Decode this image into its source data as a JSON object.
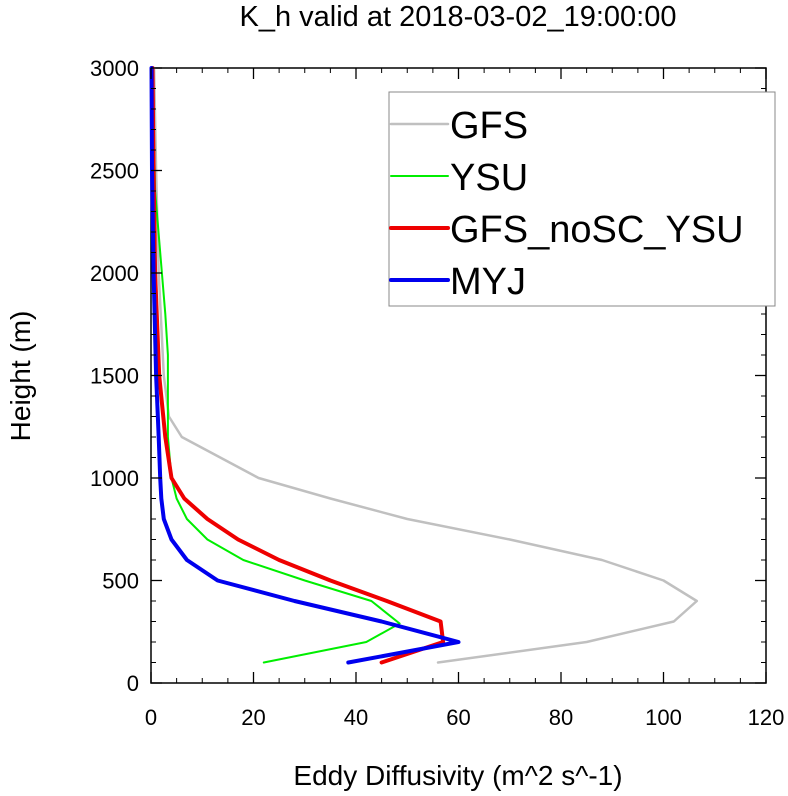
{
  "chart_data": {
    "type": "line",
    "title": "K_h valid at 2018-03-02_19:00:00",
    "xlabel": "Eddy Diffusivity (m^2 s^-1)",
    "ylabel": "Height (m)",
    "xlim": [
      0,
      120
    ],
    "ylim": [
      0,
      3000
    ],
    "xticks": [
      0,
      20,
      40,
      60,
      80,
      100,
      120
    ],
    "yticks": [
      0,
      500,
      1000,
      1500,
      2000,
      2500,
      3000
    ],
    "grid": false,
    "legend_position": "top-right",
    "series": [
      {
        "name": "GFS",
        "color": "#c0c0c0",
        "width": 2.5,
        "points": [
          [
            56,
            100
          ],
          [
            85,
            200
          ],
          [
            102,
            300
          ],
          [
            106.5,
            400
          ],
          [
            100,
            500
          ],
          [
            88,
            600
          ],
          [
            70,
            700
          ],
          [
            50,
            800
          ],
          [
            35,
            900
          ],
          [
            21,
            1000
          ],
          [
            6,
            1200
          ],
          [
            3.5,
            1300
          ],
          [
            2.5,
            1500
          ],
          [
            1.5,
            2000
          ],
          [
            1,
            2500
          ],
          [
            0.6,
            3000
          ]
        ]
      },
      {
        "name": "YSU",
        "color": "#00ee00",
        "width": 2,
        "points": [
          [
            22,
            100
          ],
          [
            42,
            200
          ],
          [
            48.5,
            290
          ],
          [
            43,
            400
          ],
          [
            30,
            500
          ],
          [
            18,
            600
          ],
          [
            11,
            700
          ],
          [
            7,
            800
          ],
          [
            5,
            900
          ],
          [
            4,
            1000
          ],
          [
            3.3,
            1200
          ],
          [
            3.3,
            1600
          ],
          [
            2.8,
            1800
          ],
          [
            1.8,
            2100
          ],
          [
            0.8,
            2400
          ],
          [
            0.3,
            3000
          ]
        ]
      },
      {
        "name": "GFS_noSC_YSU",
        "color": "#ee0000",
        "width": 4,
        "points": [
          [
            45,
            100
          ],
          [
            57,
            200
          ],
          [
            56.5,
            300
          ],
          [
            46,
            400
          ],
          [
            35,
            500
          ],
          [
            25,
            600
          ],
          [
            17,
            700
          ],
          [
            11,
            800
          ],
          [
            6.5,
            900
          ],
          [
            4,
            1000
          ],
          [
            2.8,
            1200
          ],
          [
            1.6,
            1500
          ],
          [
            0.8,
            2000
          ],
          [
            0.5,
            2500
          ],
          [
            0.3,
            3000
          ]
        ]
      },
      {
        "name": "MYJ",
        "color": "#0000ee",
        "width": 4,
        "points": [
          [
            38.5,
            100
          ],
          [
            60,
            200
          ],
          [
            45,
            300
          ],
          [
            28,
            400
          ],
          [
            13,
            500
          ],
          [
            7,
            600
          ],
          [
            4,
            700
          ],
          [
            2.5,
            800
          ],
          [
            2,
            900
          ],
          [
            1.8,
            1000
          ],
          [
            1.5,
            1200
          ],
          [
            1,
            1500
          ],
          [
            0.5,
            2000
          ],
          [
            0.2,
            2500
          ],
          [
            0.1,
            3000
          ]
        ]
      }
    ]
  }
}
